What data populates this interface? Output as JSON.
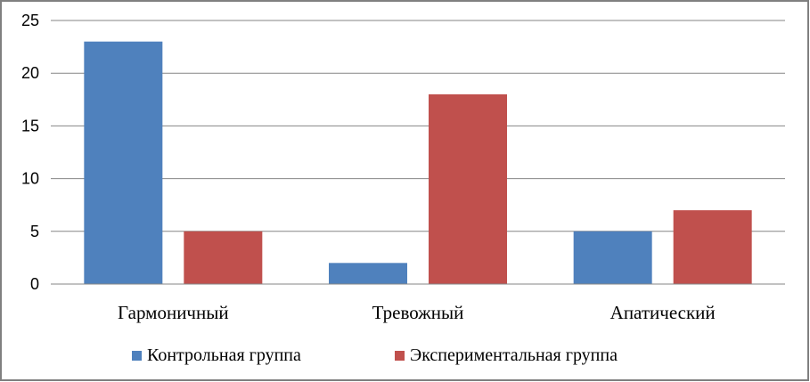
{
  "chart_data": {
    "type": "bar",
    "title": "",
    "xlabel": "",
    "ylabel": "",
    "categories": [
      "Гармоничный",
      "Тревожный",
      "Апатический"
    ],
    "series": [
      {
        "name": "Контрольная группа",
        "values": [
          23,
          2,
          5
        ],
        "color": "#4f81bd"
      },
      {
        "name": "Экспериментальная группа",
        "values": [
          5,
          18,
          7
        ],
        "color": "#c0504d"
      }
    ],
    "ylim": [
      0,
      25
    ],
    "yticks": [
      "0",
      "5",
      "10",
      "15",
      "20",
      "25"
    ],
    "grid": true,
    "legend": "bottom"
  }
}
